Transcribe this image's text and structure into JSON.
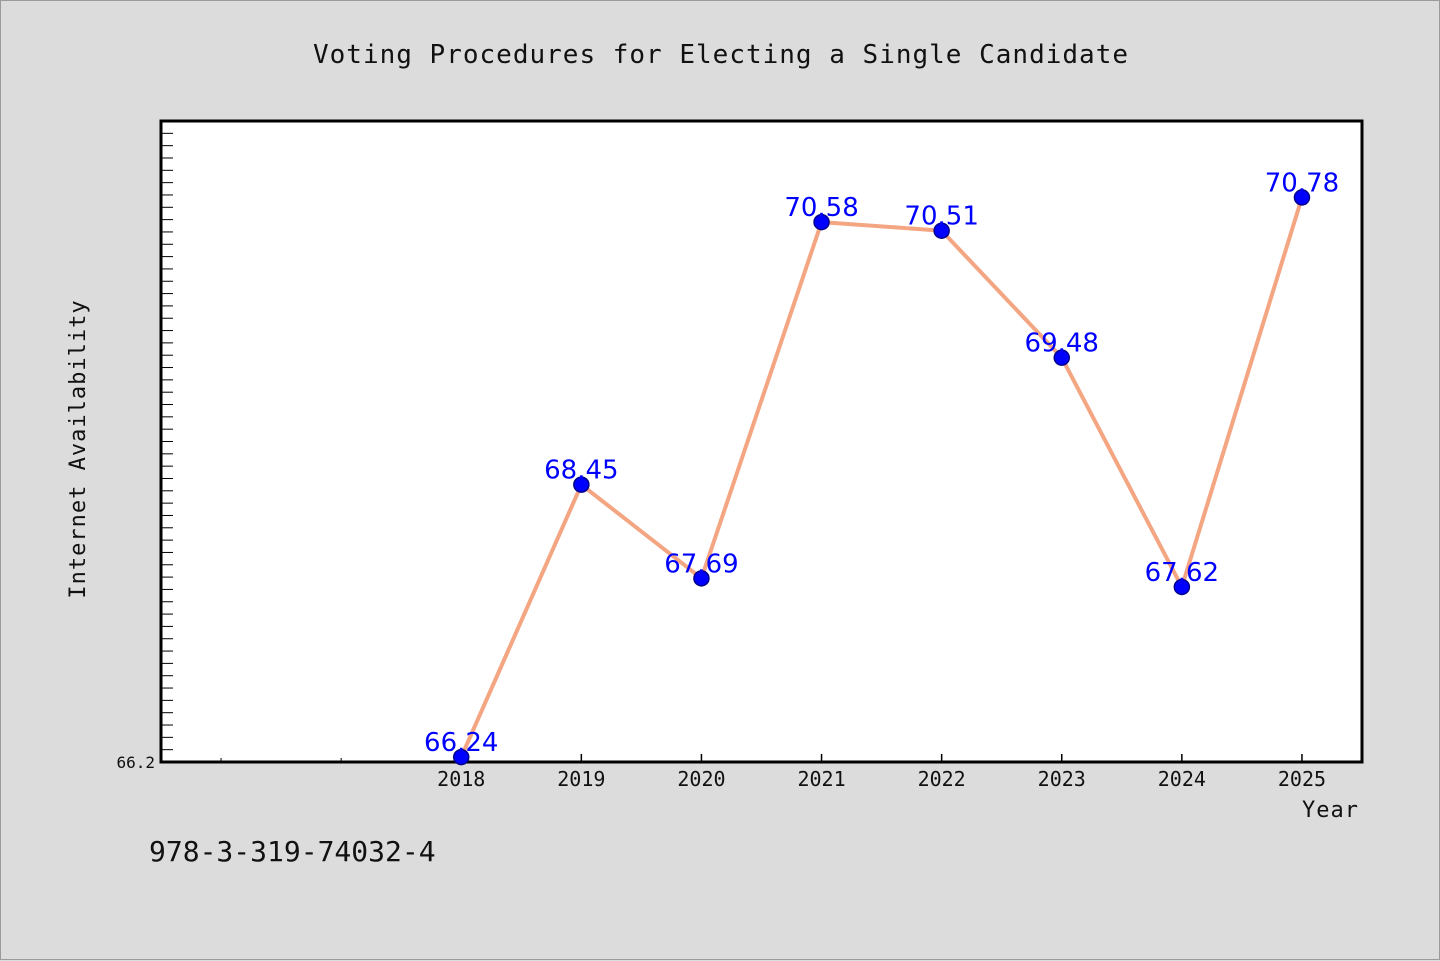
{
  "colors": {
    "background": "#dcdcdc",
    "plot_background": "#ffffff",
    "line": "#f4a582",
    "marker": "#0000ff",
    "data_label": "#0000ff"
  },
  "isbn": "978-3-319-74032-4",
  "chart_data": {
    "type": "line",
    "title": "Voting Procedures for Electing a Single Candidate",
    "xlabel": "Year",
    "ylabel": "Internet Availability",
    "categories": [
      "2018",
      "2019",
      "2020",
      "2021",
      "2022",
      "2023",
      "2024",
      "2025"
    ],
    "series": [
      {
        "values": [
          66.24,
          68.45,
          67.69,
          70.58,
          70.51,
          69.48,
          67.62,
          70.78
        ]
      }
    ],
    "data_labels": [
      "66.24",
      "68.45",
      "67.69",
      "70.58",
      "70.51",
      "69.48",
      "67.62",
      "70.78"
    ],
    "y_tick_labels": [
      "66.2"
    ],
    "ylim": [
      66.2,
      71.4
    ],
    "xlim": [
      2015.5,
      2025.5
    ],
    "grid": false,
    "legend": "none"
  }
}
